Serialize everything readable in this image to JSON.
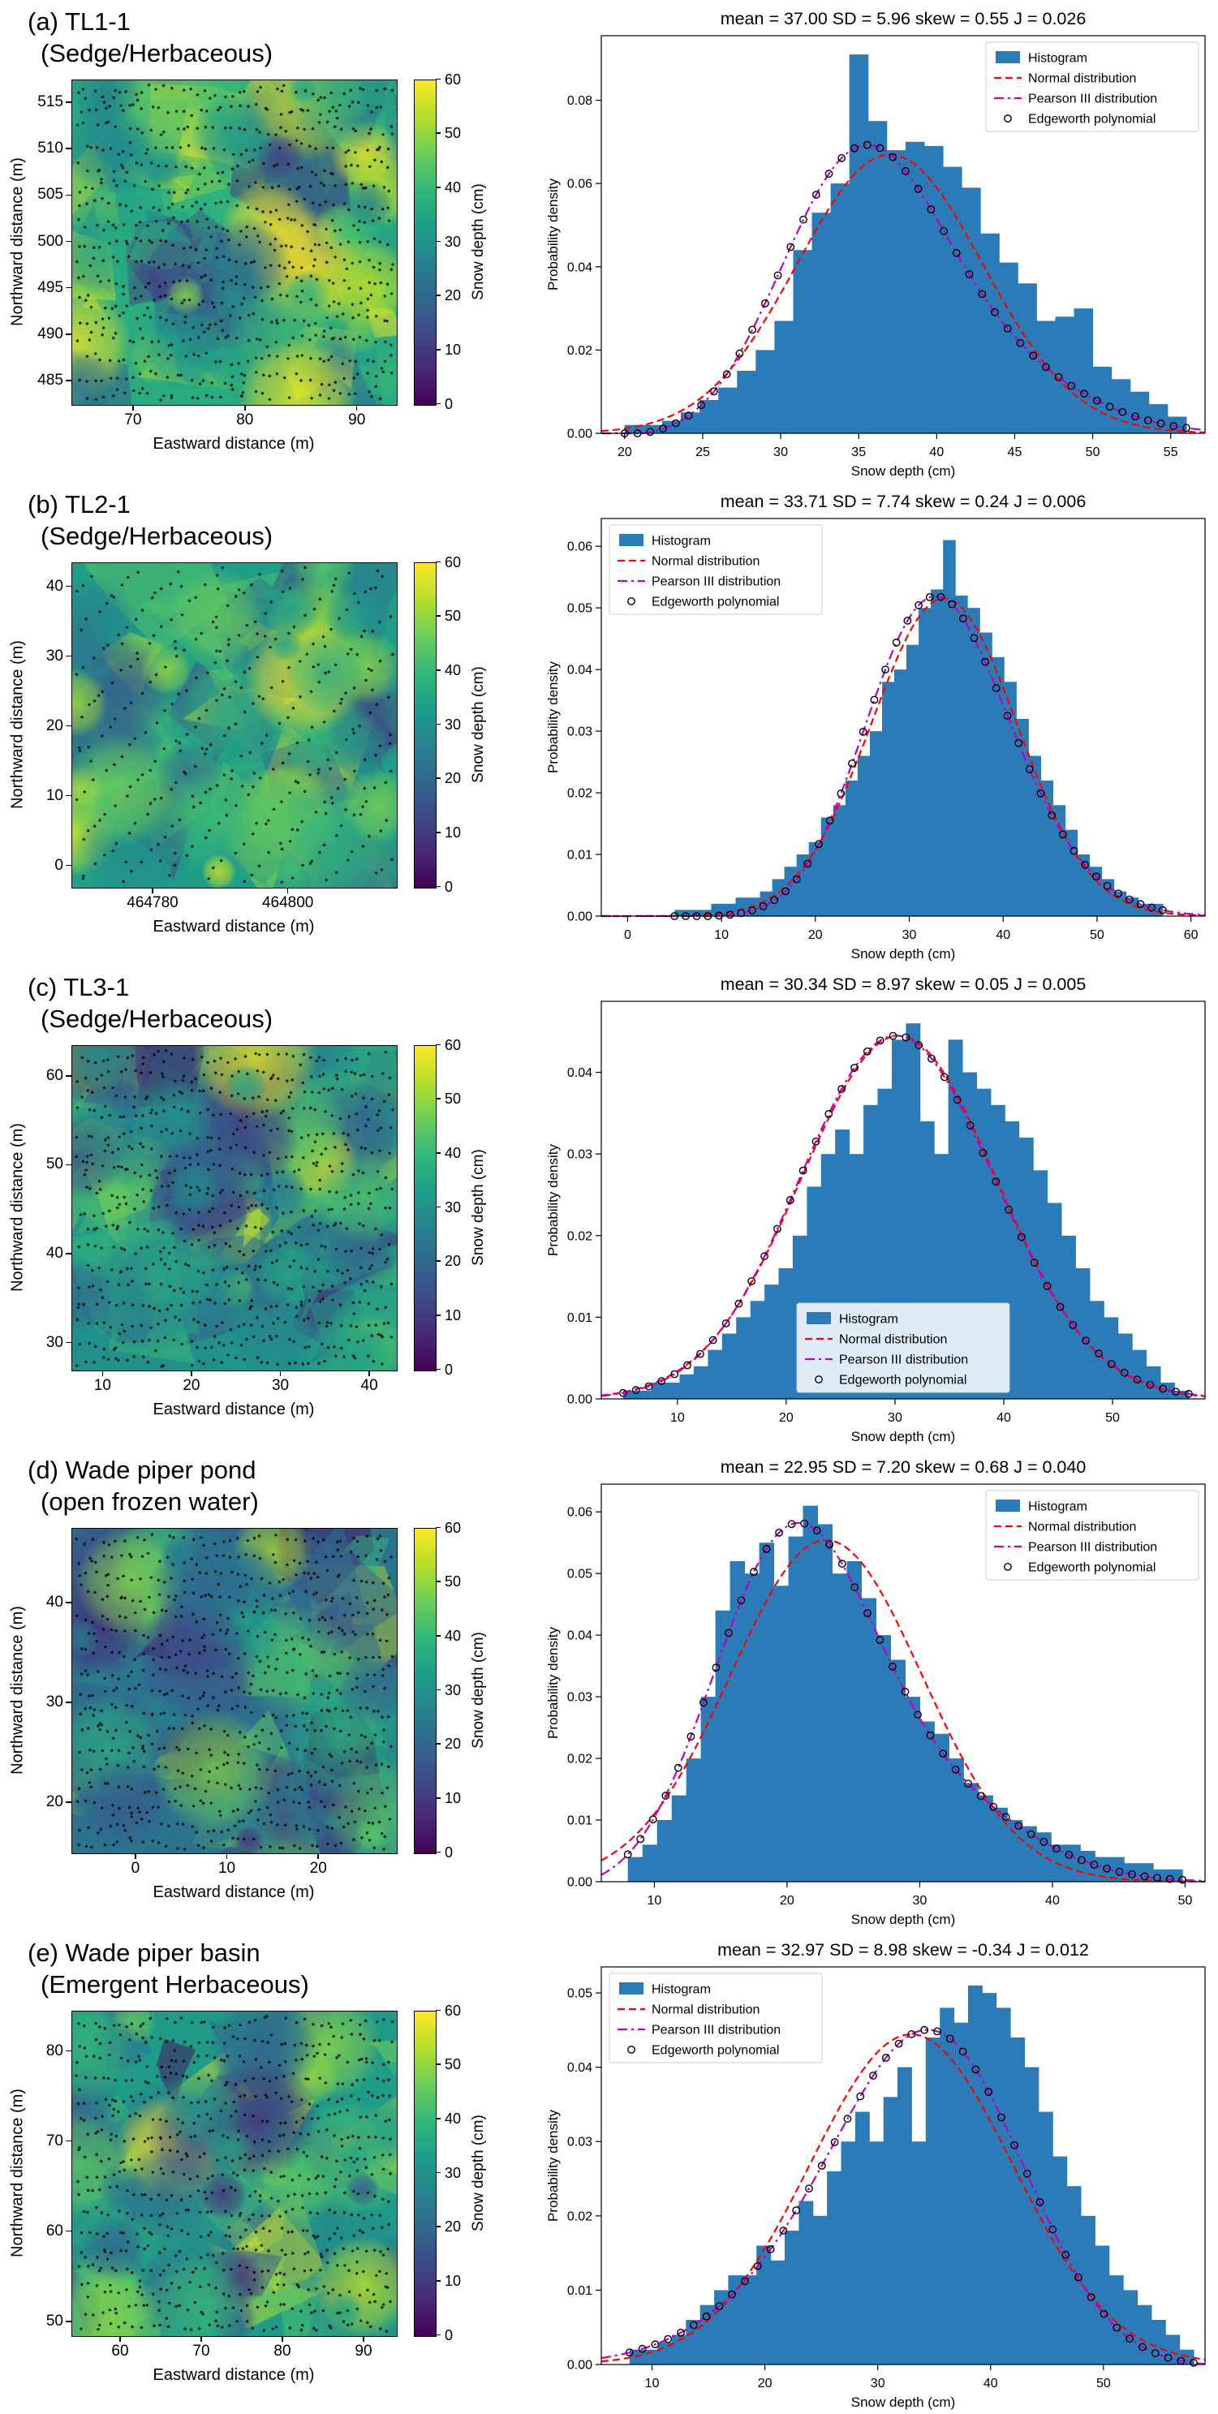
{
  "figure": {
    "legend": [
      "Histogram",
      "Normal distribution",
      "Pearson III distribution",
      "Edgeworth polynomial"
    ],
    "colorbar": {
      "label": "Snow depth (cm)",
      "ticks": [
        0,
        10,
        20,
        30,
        40,
        50,
        60
      ],
      "min": 0,
      "max": 60
    },
    "colors": {
      "histogram": "#2b7bb9",
      "normal": "#ff0000",
      "pearson": "#bf00bf",
      "edgeworth": "#000000",
      "viridis_min": "#440154",
      "viridis_max": "#fde725"
    }
  },
  "chart_data": [
    {
      "panel": "a",
      "type": "map+histogram",
      "title": "(a) TL1-1",
      "subtitle": "(Sedge/Herbaceous)",
      "mean": 37.0,
      "sd": 5.96,
      "skew": 0.55,
      "J": 0.026,
      "stats_title": "mean = 37.00  SD = 5.96  skew = 0.55  J = 0.026",
      "map": {
        "xlabel": "Eastward distance (m)",
        "ylabel": "Northward distance (m)",
        "xticks": [
          70,
          80,
          90
        ],
        "yticks": [
          485,
          490,
          495,
          500,
          505,
          510,
          515
        ],
        "xlim": [
          64.5,
          93.5
        ],
        "ylim": [
          482.5,
          517.5
        ],
        "diagonal_transects": false
      },
      "histogram": {
        "type": "bar",
        "xlabel": "Snow depth (cm)",
        "ylabel": "Probability density",
        "bin_start": 20,
        "bin_width": 1.2,
        "densities": [
          0.002,
          0.002,
          0.003,
          0.005,
          0.008,
          0.011,
          0.015,
          0.02,
          0.027,
          0.044,
          0.053,
          0.06,
          0.091,
          0.075,
          0.068,
          0.07,
          0.069,
          0.064,
          0.059,
          0.048,
          0.041,
          0.036,
          0.027,
          0.028,
          0.03,
          0.016,
          0.013,
          0.01,
          0.007,
          0.004
        ],
        "xticks": [
          20,
          25,
          30,
          35,
          40,
          45,
          50,
          55
        ],
        "yticklabels": [
          "0.00",
          "0.02",
          "0.04",
          "0.06",
          "0.08"
        ],
        "xlim": [
          18.5,
          57.2
        ],
        "ylim": [
          0,
          0.0955
        ],
        "legend_pos": "ne"
      }
    },
    {
      "panel": "b",
      "type": "map+histogram",
      "title": "(b) TL2-1",
      "subtitle": "(Sedge/Herbaceous)",
      "mean": 33.71,
      "sd": 7.74,
      "skew": 0.24,
      "J": 0.006,
      "stats_title": "mean = 33.71  SD = 7.74  skew = 0.24  J = 0.006",
      "map": {
        "xlabel": "Eastward distance (m)",
        "ylabel": "Northward distance (m)",
        "xticks": [
          464780,
          464800
        ],
        "yticks": [
          0,
          10,
          20,
          30,
          40
        ],
        "xlim": [
          464768,
          464816
        ],
        "ylim": [
          -3,
          43.5
        ],
        "diagonal_transects": true
      },
      "histogram": {
        "type": "bar",
        "xlabel": "Snow depth (cm)",
        "ylabel": "Probability density",
        "bin_start": 5,
        "bin_width": 1.3,
        "densities": [
          0.001,
          0.001,
          0.001,
          0.002,
          0.002,
          0.003,
          0.003,
          0.004,
          0.006,
          0.008,
          0.01,
          0.012,
          0.016,
          0.018,
          0.022,
          0.026,
          0.03,
          0.038,
          0.04,
          0.044,
          0.05,
          0.053,
          0.061,
          0.052,
          0.05,
          0.046,
          0.042,
          0.038,
          0.032,
          0.026,
          0.022,
          0.018,
          0.014,
          0.01,
          0.008,
          0.006,
          0.004,
          0.003,
          0.002,
          0.002
        ],
        "xticks": [
          0,
          10,
          20,
          30,
          40,
          50,
          60
        ],
        "yticklabels": [
          "0.00",
          "0.01",
          "0.02",
          "0.03",
          "0.04",
          "0.05",
          "0.06"
        ],
        "xlim": [
          -2.8,
          61.5
        ],
        "ylim": [
          0,
          0.0645
        ],
        "legend_pos": "nw"
      }
    },
    {
      "panel": "c",
      "type": "map+histogram",
      "title": "(c) TL3-1",
      "subtitle": "(Sedge/Herbaceous)",
      "mean": 30.34,
      "sd": 8.97,
      "skew": 0.05,
      "J": 0.005,
      "stats_title": "mean = 30.34  SD = 8.97  skew = 0.05  J = 0.005",
      "map": {
        "xlabel": "Eastward distance (m)",
        "ylabel": "Northward distance (m)",
        "xticks": [
          10,
          20,
          30,
          40
        ],
        "yticks": [
          30,
          40,
          50,
          60
        ],
        "xlim": [
          6.5,
          43
        ],
        "ylim": [
          27,
          63.5
        ],
        "diagonal_transects": false
      },
      "histogram": {
        "type": "bar",
        "xlabel": "Snow depth (cm)",
        "ylabel": "Probability density",
        "bin_start": 5,
        "bin_width": 1.3,
        "densities": [
          0.001,
          0.001,
          0.002,
          0.002,
          0.003,
          0.004,
          0.006,
          0.008,
          0.01,
          0.012,
          0.014,
          0.016,
          0.02,
          0.026,
          0.03,
          0.033,
          0.03,
          0.036,
          0.038,
          0.044,
          0.046,
          0.034,
          0.03,
          0.044,
          0.04,
          0.038,
          0.036,
          0.034,
          0.032,
          0.028,
          0.024,
          0.02,
          0.016,
          0.012,
          0.01,
          0.008,
          0.006,
          0.004,
          0.002,
          0.001
        ],
        "xticks": [
          10,
          20,
          30,
          40,
          50
        ],
        "yticklabels": [
          "0.00",
          "0.01",
          "0.02",
          "0.03",
          "0.04"
        ],
        "xlim": [
          3.0,
          58.5
        ],
        "ylim": [
          0,
          0.0487
        ],
        "legend_pos": "s"
      }
    },
    {
      "panel": "d",
      "type": "map+histogram",
      "title": "(d) Wade piper pond",
      "subtitle": "(open frozen water)",
      "mean": 22.95,
      "sd": 7.2,
      "skew": 0.68,
      "J": 0.04,
      "stats_title": "mean = 22.95  SD = 7.20  skew = 0.68  J = 0.040",
      "map": {
        "xlabel": "Eastward distance (m)",
        "ylabel": "Northward distance (m)",
        "xticks": [
          0,
          10,
          20
        ],
        "yticks": [
          20,
          30,
          40
        ],
        "xlim": [
          -7,
          28.5
        ],
        "ylim": [
          15,
          47.5
        ],
        "diagonal_transects": false
      },
      "histogram": {
        "type": "bar",
        "xlabel": "Snow depth (cm)",
        "ylabel": "Probability density",
        "bin_start": 8,
        "bin_width": 1.1,
        "densities": [
          0.004,
          0.006,
          0.01,
          0.014,
          0.02,
          0.03,
          0.044,
          0.052,
          0.05,
          0.055,
          0.048,
          0.056,
          0.061,
          0.058,
          0.05,
          0.052,
          0.046,
          0.04,
          0.036,
          0.03,
          0.026,
          0.024,
          0.02,
          0.016,
          0.014,
          0.012,
          0.01,
          0.009,
          0.008,
          0.006,
          0.006,
          0.005,
          0.004,
          0.004,
          0.003,
          0.003,
          0.002,
          0.002
        ],
        "xticks": [
          10,
          20,
          30,
          40,
          50
        ],
        "yticklabels": [
          "0.00",
          "0.01",
          "0.02",
          "0.03",
          "0.04",
          "0.05",
          "0.06"
        ],
        "xlim": [
          6.0,
          51.5
        ],
        "ylim": [
          0,
          0.0645
        ],
        "legend_pos": "ne"
      }
    },
    {
      "panel": "e",
      "type": "map+histogram",
      "title": "(e) Wade piper basin",
      "subtitle": "(Emergent Herbaceous)",
      "mean": 32.97,
      "sd": 8.98,
      "skew": -0.34,
      "J": 0.012,
      "stats_title": "mean = 32.97  SD = 8.98  skew = -0.34  J = 0.012",
      "map": {
        "xlabel": "Eastward distance (m)",
        "ylabel": "Northward distance (m)",
        "xticks": [
          60,
          70,
          80,
          90
        ],
        "yticks": [
          50,
          60,
          70,
          80
        ],
        "xlim": [
          54,
          94
        ],
        "ylim": [
          48.5,
          84.5
        ],
        "diagonal_transects": false
      },
      "histogram": {
        "type": "bar",
        "xlabel": "Snow depth (cm)",
        "ylabel": "Probability density",
        "bin_start": 8,
        "bin_width": 1.25,
        "densities": [
          0.002,
          0.002,
          0.003,
          0.004,
          0.006,
          0.008,
          0.01,
          0.012,
          0.012,
          0.016,
          0.014,
          0.018,
          0.022,
          0.02,
          0.026,
          0.03,
          0.034,
          0.03,
          0.036,
          0.04,
          0.03,
          0.044,
          0.048,
          0.046,
          0.051,
          0.05,
          0.048,
          0.044,
          0.04,
          0.034,
          0.028,
          0.024,
          0.02,
          0.016,
          0.012,
          0.01,
          0.008,
          0.006,
          0.004,
          0.002
        ],
        "xticks": [
          10,
          20,
          30,
          40,
          50
        ],
        "yticklabels": [
          "0.00",
          "0.01",
          "0.02",
          "0.03",
          "0.04",
          "0.05"
        ],
        "xlim": [
          5.5,
          59.0
        ],
        "ylim": [
          0,
          0.0535
        ],
        "legend_pos": "nw"
      }
    }
  ]
}
